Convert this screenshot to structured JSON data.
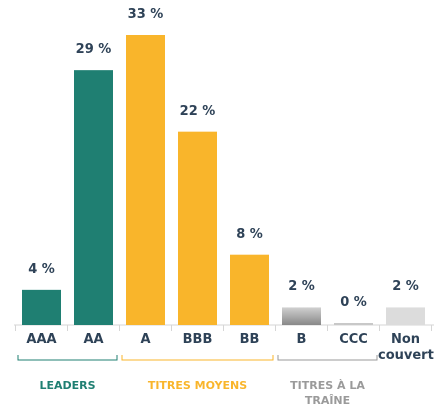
{
  "chart_data": {
    "type": "bar",
    "categories": [
      "AAA",
      "AA",
      "A",
      "BBB",
      "BB",
      "B",
      "CCC",
      "Non couvert"
    ],
    "values": [
      4,
      29,
      33,
      22,
      8,
      2,
      0,
      2
    ],
    "value_labels": [
      "4 %",
      "29 %",
      "33 %",
      "22 %",
      "8 %",
      "2 %",
      "0 %",
      "2 %"
    ],
    "colors": [
      "#1f7f72",
      "#1f7f72",
      "#f9b52b",
      "#f9b52b",
      "#f9b52b",
      "#9a9a9a",
      "#c8c8c8",
      "#dcdcdc"
    ],
    "groups": [
      {
        "label": "LEADERS",
        "color": "#1f7f72"
      },
      {
        "label": "TITRES MOYENS",
        "color": "#f9b52b"
      },
      {
        "label": "TITRES À LA TRAÎNE",
        "color": "#9a9a9a"
      }
    ]
  }
}
